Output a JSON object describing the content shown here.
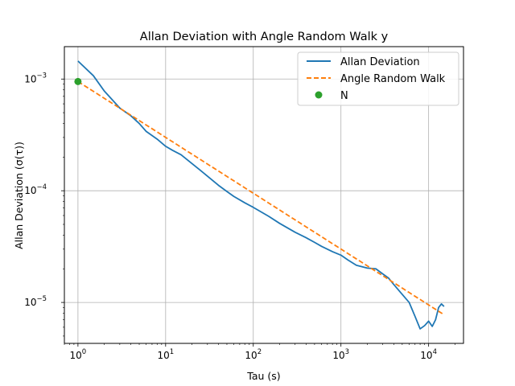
{
  "chart_data": {
    "type": "line",
    "title": "Allan Deviation with Angle Random Walk y",
    "xlabel": "Tau (s)",
    "ylabel": "Allan Deviation (σ(τ))",
    "xscale": "log",
    "yscale": "log",
    "xlim": [
      0.7,
      25000
    ],
    "ylim": [
      4.3e-06,
      0.00195
    ],
    "grid": true,
    "legend_position": "top-right",
    "x_ticks": [
      {
        "base": "10",
        "exp": "0"
      },
      {
        "base": "10",
        "exp": "1"
      },
      {
        "base": "10",
        "exp": "2"
      },
      {
        "base": "10",
        "exp": "3"
      },
      {
        "base": "10",
        "exp": "4"
      }
    ],
    "y_ticks": [
      {
        "base": "10",
        "exp": "−5"
      },
      {
        "base": "10",
        "exp": "−4"
      },
      {
        "base": "10",
        "exp": "−3"
      }
    ],
    "series": [
      {
        "name": "Allan Deviation",
        "style": "solid",
        "color": "#1f77b4",
        "x": [
          1,
          1.5,
          2,
          3,
          4,
          5,
          6,
          8,
          10,
          12,
          15,
          20,
          25,
          30,
          40,
          50,
          60,
          80,
          100,
          150,
          200,
          300,
          400,
          500,
          600,
          800,
          1000,
          1200,
          1500,
          2000,
          2500,
          3000,
          3500,
          4000,
          5000,
          6000,
          7000,
          8000,
          9000,
          10000,
          11000,
          12000,
          13000,
          14000,
          15000
        ],
        "y": [
          0.00145,
          0.00107,
          0.00078,
          0.00055,
          0.00047,
          0.0004,
          0.00034,
          0.00029,
          0.00025,
          0.00023,
          0.00021,
          0.000175,
          0.000152,
          0.000135,
          0.000112,
          9.85e-05,
          8.9e-05,
          7.8e-05,
          7.1e-05,
          5.9e-05,
          5.1e-05,
          4.25e-05,
          3.8e-05,
          3.45e-05,
          3.18e-05,
          2.85e-05,
          2.65e-05,
          2.4e-05,
          2.15e-05,
          2.03e-05,
          2e-05,
          1.8e-05,
          1.65e-05,
          1.45e-05,
          1.18e-05,
          1e-05,
          7.5e-06,
          5.8e-06,
          6.2e-06,
          6.8e-06,
          6.1e-06,
          7e-06,
          9e-06,
          9.7e-06,
          9.2e-06
        ]
      },
      {
        "name": "Angle Random Walk",
        "style": "dashed",
        "color": "#ff7f0e",
        "x": [
          1,
          15000
        ],
        "y": [
          0.00095,
          7.76e-06
        ]
      },
      {
        "name": "N",
        "style": "marker",
        "color": "#2ca02c",
        "x": [
          1
        ],
        "y": [
          0.00095
        ]
      }
    ]
  }
}
